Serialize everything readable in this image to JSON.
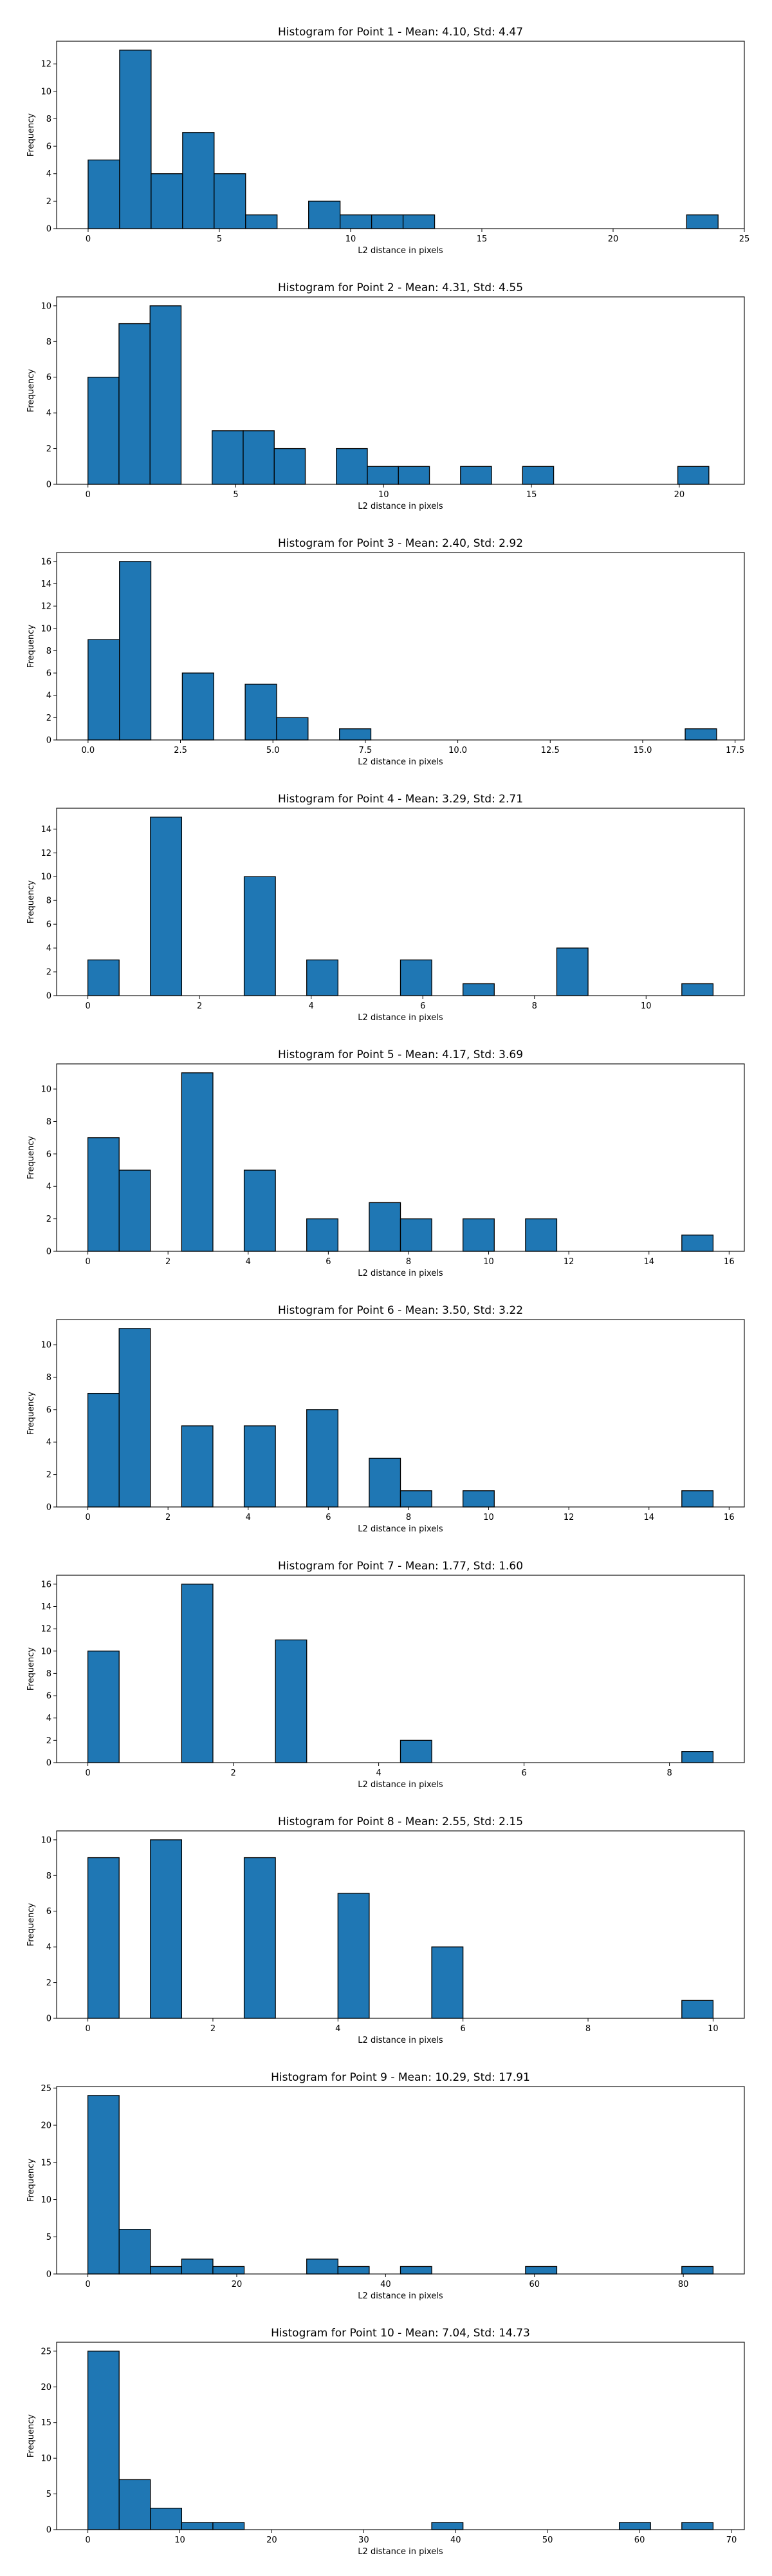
{
  "colors": {
    "bar_fill": "#1f77b4",
    "bar_edge": "#000000",
    "axis": "#000000",
    "background": "#ffffff"
  },
  "chart_data": [
    {
      "type": "bar",
      "title": "Histogram for Point 1 - Mean: 4.10, Std: 4.47",
      "xlabel": "L2 distance in pixels",
      "ylabel": "Frequency",
      "xlim": [
        -1.2,
        25.0
      ],
      "ylim": [
        0,
        13.65
      ],
      "xticks": [
        0,
        5,
        10,
        15,
        20,
        25
      ],
      "yticks": [
        0,
        2,
        4,
        6,
        8,
        10,
        12
      ],
      "bins": [
        {
          "x0": 0.0,
          "x1": 1.2,
          "count": 5
        },
        {
          "x0": 1.2,
          "x1": 2.4,
          "count": 13
        },
        {
          "x0": 2.4,
          "x1": 3.6,
          "count": 4
        },
        {
          "x0": 3.6,
          "x1": 4.8,
          "count": 7
        },
        {
          "x0": 4.8,
          "x1": 6.0,
          "count": 4
        },
        {
          "x0": 6.0,
          "x1": 7.2,
          "count": 1
        },
        {
          "x0": 8.4,
          "x1": 9.6,
          "count": 2
        },
        {
          "x0": 9.6,
          "x1": 10.8,
          "count": 1
        },
        {
          "x0": 10.8,
          "x1": 12.0,
          "count": 1
        },
        {
          "x0": 12.0,
          "x1": 13.2,
          "count": 1
        },
        {
          "x0": 22.8,
          "x1": 24.0,
          "count": 1
        }
      ]
    },
    {
      "type": "bar",
      "title": "Histogram for Point 2 - Mean: 4.31, Std: 4.55",
      "xlabel": "L2 distance in pixels",
      "ylabel": "Frequency",
      "xlim": [
        -1.06,
        22.2
      ],
      "ylim": [
        0,
        10.5
      ],
      "xticks": [
        0,
        5,
        10,
        15,
        20
      ],
      "yticks": [
        0,
        2,
        4,
        6,
        8,
        10
      ],
      "bins": [
        {
          "x0": 0.0,
          "x1": 1.05,
          "count": 6
        },
        {
          "x0": 1.05,
          "x1": 2.1,
          "count": 9
        },
        {
          "x0": 2.1,
          "x1": 3.15,
          "count": 10
        },
        {
          "x0": 4.2,
          "x1": 5.25,
          "count": 3
        },
        {
          "x0": 5.25,
          "x1": 6.3,
          "count": 3
        },
        {
          "x0": 6.3,
          "x1": 7.35,
          "count": 2
        },
        {
          "x0": 8.4,
          "x1": 9.45,
          "count": 2
        },
        {
          "x0": 9.45,
          "x1": 10.5,
          "count": 1
        },
        {
          "x0": 10.5,
          "x1": 11.55,
          "count": 1
        },
        {
          "x0": 12.6,
          "x1": 13.65,
          "count": 1
        },
        {
          "x0": 14.7,
          "x1": 15.75,
          "count": 1
        },
        {
          "x0": 19.95,
          "x1": 21.0,
          "count": 1
        }
      ]
    },
    {
      "type": "bar",
      "title": "Histogram for Point 3 - Mean: 2.40, Std: 2.92",
      "xlabel": "L2 distance in pixels",
      "ylabel": "Frequency",
      "xlim": [
        -0.85,
        17.75
      ],
      "ylim": [
        0,
        16.8
      ],
      "xticks": [
        0.0,
        2.5,
        5.0,
        7.5,
        10.0,
        12.5,
        15.0,
        17.5
      ],
      "yticks": [
        0,
        2,
        4,
        6,
        8,
        10,
        12,
        14,
        16
      ],
      "bins": [
        {
          "x0": 0.0,
          "x1": 0.85,
          "count": 9
        },
        {
          "x0": 0.85,
          "x1": 1.7,
          "count": 16
        },
        {
          "x0": 2.55,
          "x1": 3.4,
          "count": 6
        },
        {
          "x0": 4.25,
          "x1": 5.1,
          "count": 5
        },
        {
          "x0": 5.1,
          "x1": 5.95,
          "count": 2
        },
        {
          "x0": 6.8,
          "x1": 7.65,
          "count": 1
        },
        {
          "x0": 16.15,
          "x1": 17.0,
          "count": 1
        }
      ]
    },
    {
      "type": "bar",
      "title": "Histogram for Point 4 - Mean: 3.29, Std: 2.71",
      "xlabel": "L2 distance in pixels",
      "ylabel": "Frequency",
      "xlim": [
        -0.56,
        11.76
      ],
      "ylim": [
        0,
        15.75
      ],
      "xticks": [
        0,
        2,
        4,
        6,
        8,
        10
      ],
      "yticks": [
        0,
        2,
        4,
        6,
        8,
        10,
        12,
        14
      ],
      "bins": [
        {
          "x0": 0.0,
          "x1": 0.56,
          "count": 3
        },
        {
          "x0": 1.12,
          "x1": 1.68,
          "count": 15
        },
        {
          "x0": 2.8,
          "x1": 3.36,
          "count": 10
        },
        {
          "x0": 3.92,
          "x1": 4.48,
          "count": 3
        },
        {
          "x0": 5.6,
          "x1": 6.16,
          "count": 3
        },
        {
          "x0": 6.72,
          "x1": 7.28,
          "count": 1
        },
        {
          "x0": 8.4,
          "x1": 8.96,
          "count": 4
        },
        {
          "x0": 10.64,
          "x1": 11.2,
          "count": 1
        }
      ]
    },
    {
      "type": "bar",
      "title": "Histogram for Point 5 - Mean: 4.17, Std: 3.69",
      "xlabel": "L2 distance in pixels",
      "ylabel": "Frequency",
      "xlim": [
        -0.78,
        16.38
      ],
      "ylim": [
        0,
        11.55
      ],
      "xticks": [
        0,
        2,
        4,
        6,
        8,
        10,
        12,
        14,
        16
      ],
      "yticks": [
        0,
        2,
        4,
        6,
        8,
        10
      ],
      "bins": [
        {
          "x0": 0.0,
          "x1": 0.78,
          "count": 7
        },
        {
          "x0": 0.78,
          "x1": 1.56,
          "count": 5
        },
        {
          "x0": 2.34,
          "x1": 3.12,
          "count": 11
        },
        {
          "x0": 3.9,
          "x1": 4.68,
          "count": 5
        },
        {
          "x0": 5.46,
          "x1": 6.24,
          "count": 2
        },
        {
          "x0": 7.02,
          "x1": 7.8,
          "count": 3
        },
        {
          "x0": 7.8,
          "x1": 8.58,
          "count": 2
        },
        {
          "x0": 9.36,
          "x1": 10.14,
          "count": 2
        },
        {
          "x0": 10.92,
          "x1": 11.7,
          "count": 2
        },
        {
          "x0": 14.82,
          "x1": 15.6,
          "count": 1
        }
      ]
    },
    {
      "type": "bar",
      "title": "Histogram for Point 6 - Mean: 3.50, Std: 3.22",
      "xlabel": "L2 distance in pixels",
      "ylabel": "Frequency",
      "xlim": [
        -0.78,
        16.38
      ],
      "ylim": [
        0,
        11.55
      ],
      "xticks": [
        0,
        2,
        4,
        6,
        8,
        10,
        12,
        14,
        16
      ],
      "yticks": [
        0,
        2,
        4,
        6,
        8,
        10
      ],
      "bins": [
        {
          "x0": 0.0,
          "x1": 0.78,
          "count": 7
        },
        {
          "x0": 0.78,
          "x1": 1.56,
          "count": 11
        },
        {
          "x0": 2.34,
          "x1": 3.12,
          "count": 5
        },
        {
          "x0": 3.9,
          "x1": 4.68,
          "count": 5
        },
        {
          "x0": 5.46,
          "x1": 6.24,
          "count": 6
        },
        {
          "x0": 7.02,
          "x1": 7.8,
          "count": 3
        },
        {
          "x0": 7.8,
          "x1": 8.58,
          "count": 1
        },
        {
          "x0": 9.36,
          "x1": 10.14,
          "count": 1
        },
        {
          "x0": 14.82,
          "x1": 15.6,
          "count": 1
        }
      ]
    },
    {
      "type": "bar",
      "title": "Histogram for Point 7 - Mean: 1.77, Std: 1.60",
      "xlabel": "L2 distance in pixels",
      "ylabel": "Frequency",
      "xlim": [
        -0.43,
        9.03
      ],
      "ylim": [
        0,
        16.8
      ],
      "xticks": [
        0,
        2,
        4,
        6,
        8
      ],
      "yticks": [
        0,
        2,
        4,
        6,
        8,
        10,
        12,
        14,
        16
      ],
      "bins": [
        {
          "x0": 0.0,
          "x1": 0.43,
          "count": 10
        },
        {
          "x0": 1.29,
          "x1": 1.72,
          "count": 16
        },
        {
          "x0": 2.58,
          "x1": 3.01,
          "count": 11
        },
        {
          "x0": 4.3,
          "x1": 4.73,
          "count": 2
        },
        {
          "x0": 8.17,
          "x1": 8.6,
          "count": 1
        }
      ]
    },
    {
      "type": "bar",
      "title": "Histogram for Point 8 - Mean: 2.55, Std: 2.15",
      "xlabel": "L2 distance in pixels",
      "ylabel": "Frequency",
      "xlim": [
        -0.5,
        10.5
      ],
      "ylim": [
        0,
        10.5
      ],
      "xticks": [
        0,
        2,
        4,
        6,
        8,
        10
      ],
      "yticks": [
        0,
        2,
        4,
        6,
        8,
        10
      ],
      "bins": [
        {
          "x0": 0.0,
          "x1": 0.5,
          "count": 9
        },
        {
          "x0": 1.0,
          "x1": 1.5,
          "count": 10
        },
        {
          "x0": 2.5,
          "x1": 3.0,
          "count": 9
        },
        {
          "x0": 4.0,
          "x1": 4.5,
          "count": 7
        },
        {
          "x0": 5.5,
          "x1": 6.0,
          "count": 4
        },
        {
          "x0": 9.5,
          "x1": 10.0,
          "count": 1
        }
      ]
    },
    {
      "type": "bar",
      "title": "Histogram for Point 9 - Mean: 10.29, Std: 17.91",
      "xlabel": "L2 distance in pixels",
      "ylabel": "Frequency",
      "xlim": [
        -4.2,
        88.2
      ],
      "ylim": [
        0,
        25.2
      ],
      "xticks": [
        0,
        20,
        40,
        60,
        80
      ],
      "yticks": [
        0,
        5,
        10,
        15,
        20,
        25
      ],
      "bins": [
        {
          "x0": 0.0,
          "x1": 4.2,
          "count": 24
        },
        {
          "x0": 4.2,
          "x1": 8.4,
          "count": 6
        },
        {
          "x0": 8.4,
          "x1": 12.6,
          "count": 1
        },
        {
          "x0": 12.6,
          "x1": 16.8,
          "count": 2
        },
        {
          "x0": 16.8,
          "x1": 21.0,
          "count": 1
        },
        {
          "x0": 29.4,
          "x1": 33.6,
          "count": 2
        },
        {
          "x0": 33.6,
          "x1": 37.8,
          "count": 1
        },
        {
          "x0": 42.0,
          "x1": 46.2,
          "count": 1
        },
        {
          "x0": 58.8,
          "x1": 63.0,
          "count": 1
        },
        {
          "x0": 79.8,
          "x1": 84.0,
          "count": 1
        }
      ]
    },
    {
      "type": "bar",
      "title": "Histogram for Point 10 - Mean: 7.04, Std: 14.73",
      "xlabel": "L2 distance in pixels",
      "ylabel": "Frequency",
      "xlim": [
        -3.4,
        71.4
      ],
      "ylim": [
        0,
        26.25
      ],
      "xticks": [
        0,
        10,
        20,
        30,
        40,
        50,
        60,
        70
      ],
      "yticks": [
        0,
        5,
        10,
        15,
        20,
        25
      ],
      "bins": [
        {
          "x0": 0.0,
          "x1": 3.4,
          "count": 25
        },
        {
          "x0": 3.4,
          "x1": 6.8,
          "count": 7
        },
        {
          "x0": 6.8,
          "x1": 10.2,
          "count": 3
        },
        {
          "x0": 10.2,
          "x1": 13.6,
          "count": 1
        },
        {
          "x0": 13.6,
          "x1": 17.0,
          "count": 1
        },
        {
          "x0": 37.4,
          "x1": 40.8,
          "count": 1
        },
        {
          "x0": 57.8,
          "x1": 61.2,
          "count": 1
        },
        {
          "x0": 64.6,
          "x1": 68.0,
          "count": 1
        }
      ]
    }
  ]
}
